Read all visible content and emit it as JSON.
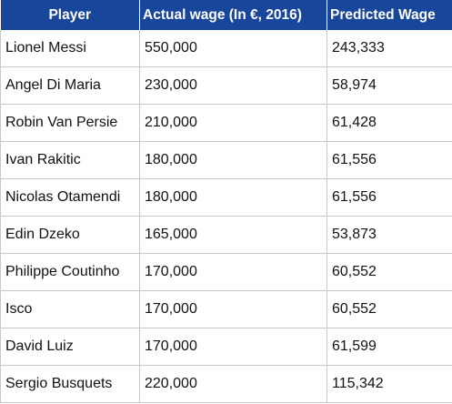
{
  "table": {
    "headers": [
      "Player",
      "Actual wage (In €, 2016)",
      "Predicted Wage"
    ],
    "rows": [
      [
        "Lionel Messi",
        "550,000",
        "243,333"
      ],
      [
        "Angel Di Maria",
        "230,000",
        "58,974"
      ],
      [
        "Robin Van Persie",
        "210,000",
        "61,428"
      ],
      [
        "Ivan Rakitic",
        "180,000",
        "61,556"
      ],
      [
        "Nicolas Otamendi",
        "180,000",
        "61,556"
      ],
      [
        "Edin Dzeko",
        "165,000",
        "53,873"
      ],
      [
        "Philippe Coutinho",
        "170,000",
        "60,552"
      ],
      [
        "Isco",
        "170,000",
        "60,552"
      ],
      [
        "David Luiz",
        "170,000",
        "61,599"
      ],
      [
        "Sergio Busquets",
        "220,000",
        "115,342"
      ]
    ]
  },
  "colors": {
    "header_background": "#17469a",
    "header_text": "#ffffff",
    "grid_lines": "#c8c8c8"
  }
}
